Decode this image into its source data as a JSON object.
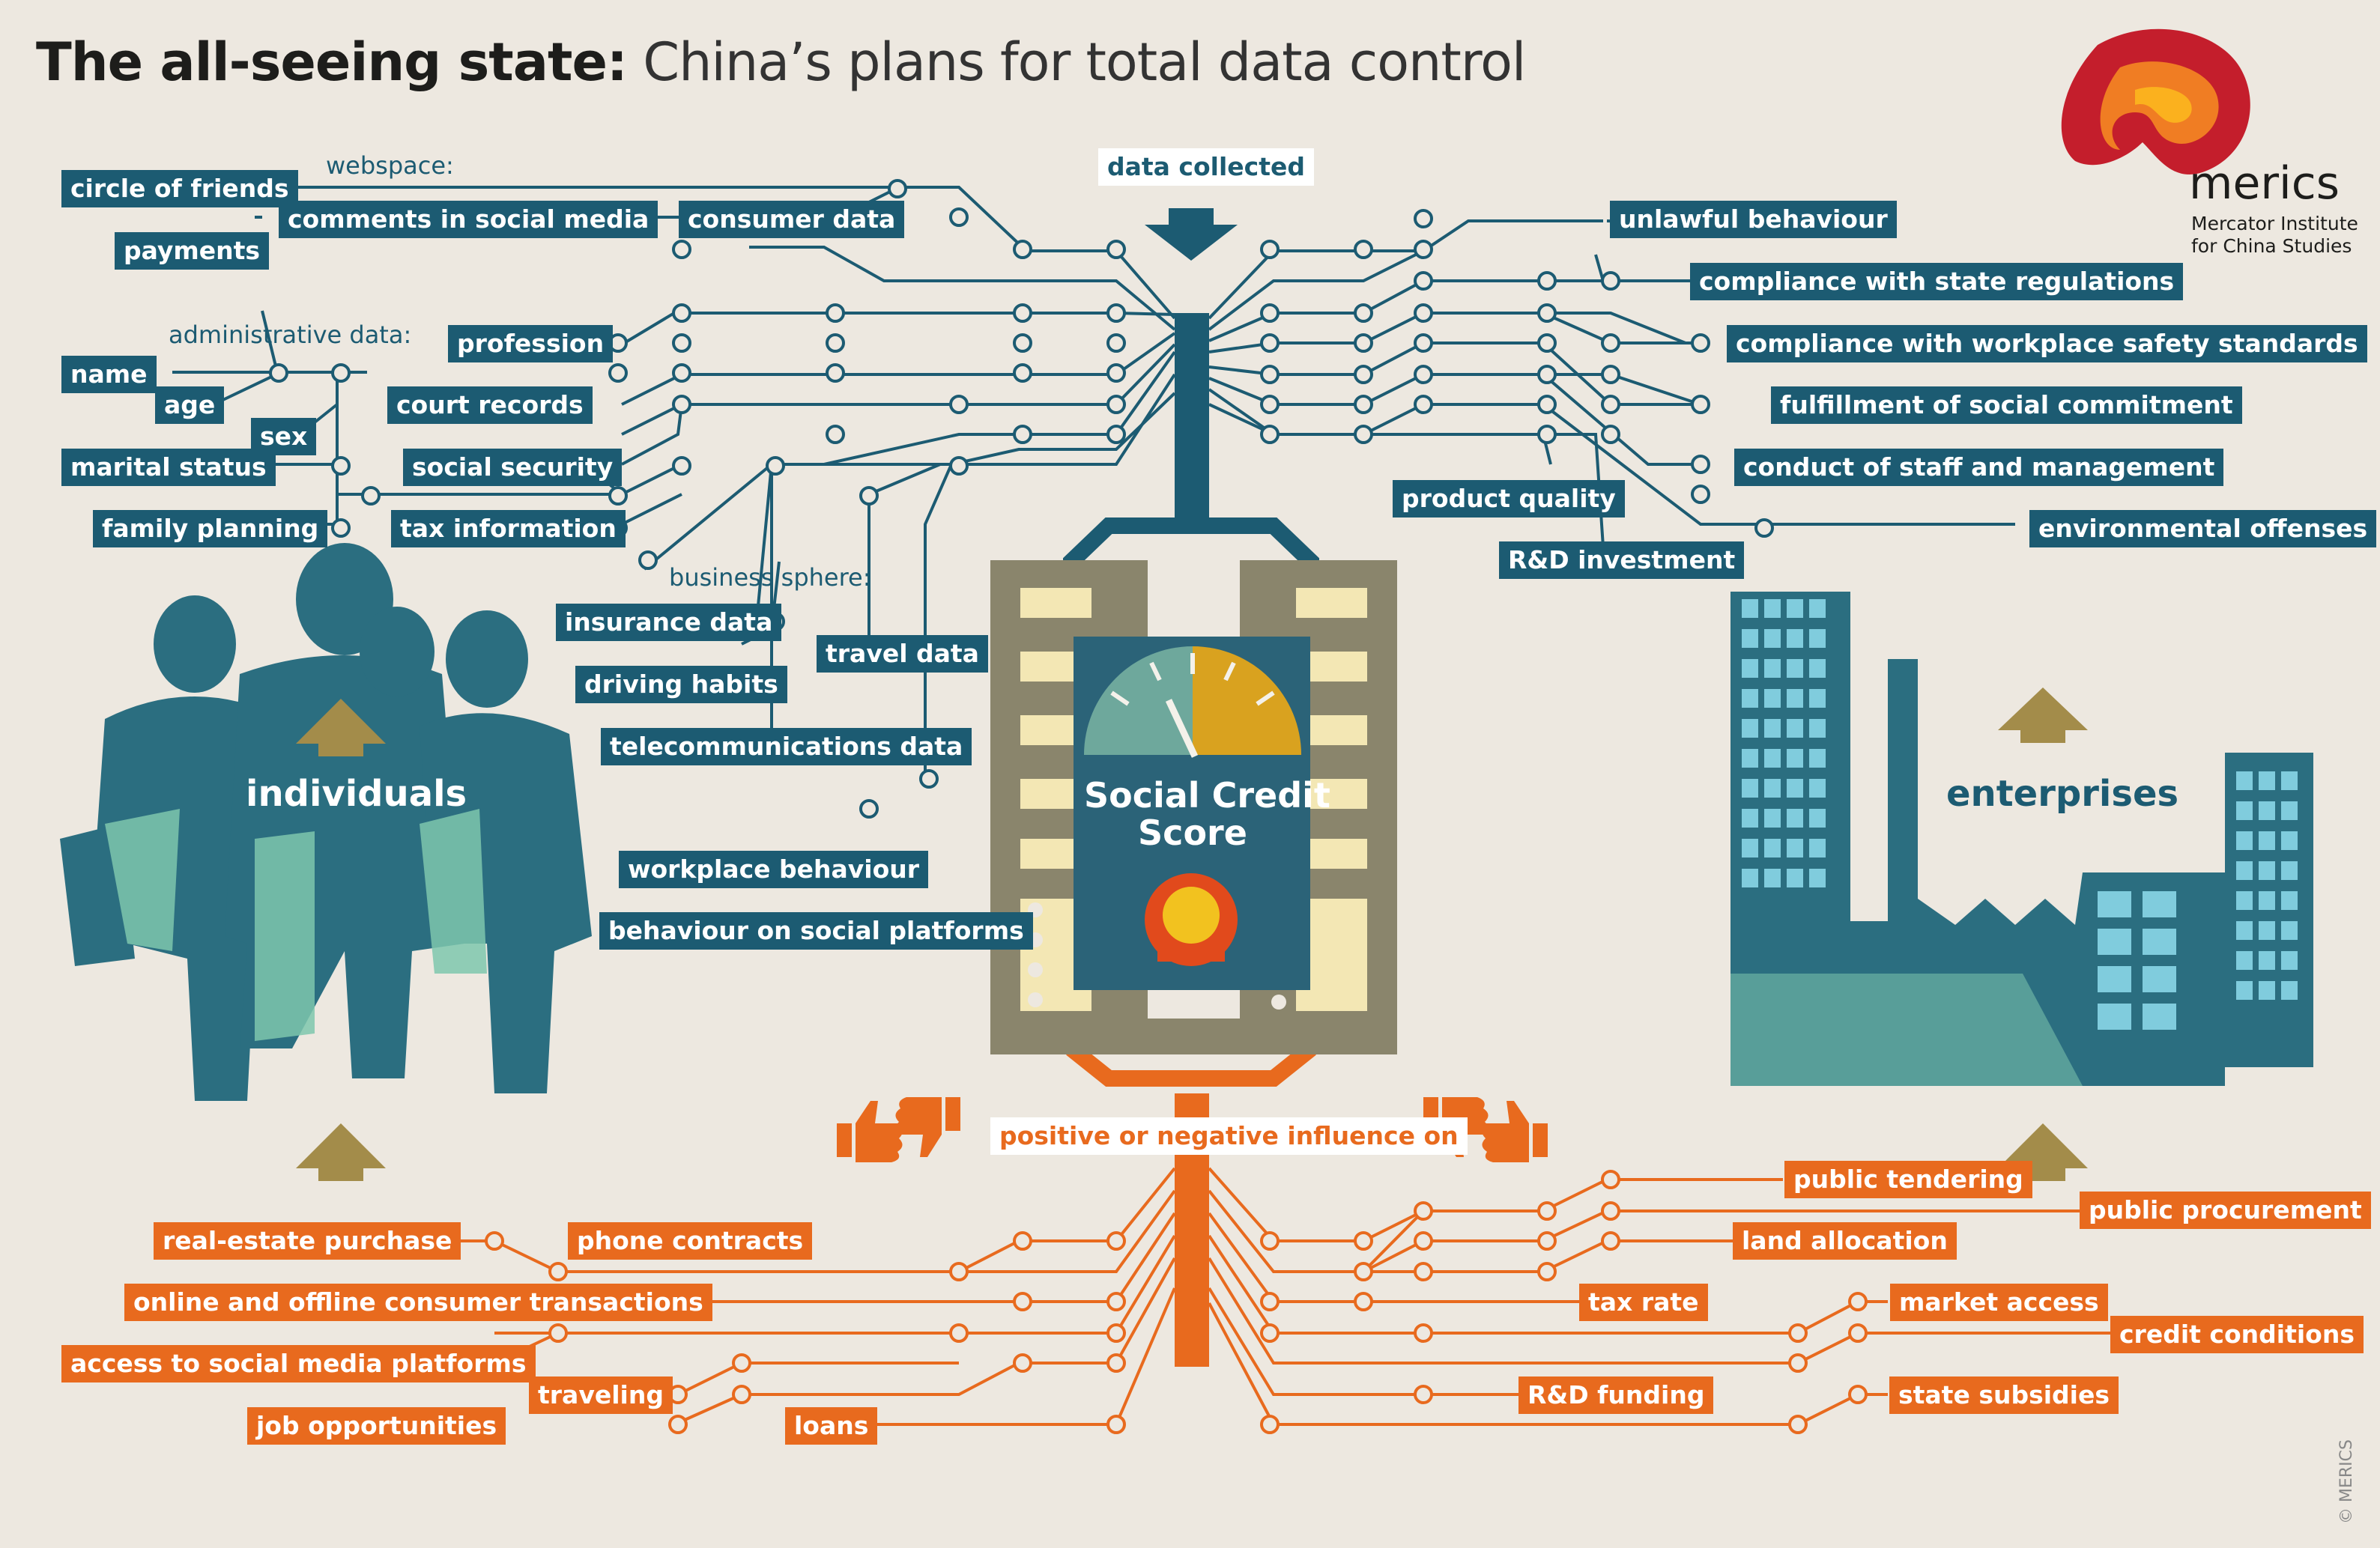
{
  "title": {
    "bold": "The all-seeing state:",
    "rest": "China’s plans for total data control"
  },
  "brand": {
    "name": "merics",
    "subtitle_line1": "Mercator Institute",
    "subtitle_line2": "for China Studies",
    "copyright": "© MERICS"
  },
  "top_label": "data collected",
  "bottom_label": "positive or negative influence on",
  "center": {
    "line1": "Social Credit",
    "line2": "Score"
  },
  "groups": {
    "individuals": "individuals",
    "enterprises": "enterprises"
  },
  "captions": {
    "webspace": "webspace:",
    "administrative": "administrative data:",
    "business": "business  sphere:"
  },
  "inputs_individual": [
    "circle of friends",
    "comments in social media",
    "consumer data",
    "payments",
    "profession",
    "name",
    "age",
    "court records",
    "sex",
    "marital status",
    "social security",
    "family planning",
    "tax information",
    "insurance data",
    "driving habits",
    "travel data",
    "telecommunications data",
    "workplace behaviour",
    "behaviour on social platforms"
  ],
  "inputs_enterprise": [
    "unlawful behaviour",
    "compliance with state regulations",
    "compliance with workplace safety standards",
    "fulfillment of social commitment",
    "conduct of staff and management",
    "environmental offenses",
    "product quality",
    "R&D investment"
  ],
  "outputs_individual": [
    "real-estate purchase",
    "phone contracts",
    "online and offline consumer transactions",
    "access to social media platforms",
    "traveling",
    "job opportunities",
    "loans"
  ],
  "outputs_enterprise": [
    "public tendering",
    "public procurement",
    "land allocation",
    "tax rate",
    "market access",
    "credit conditions",
    "R&D funding",
    "state subsidies"
  ],
  "colors": {
    "teal": "#1c5b72",
    "orange": "#e86a1e",
    "olive": "#a38c4a",
    "mint": "#7ec7ad",
    "background": "#ede8e0"
  }
}
